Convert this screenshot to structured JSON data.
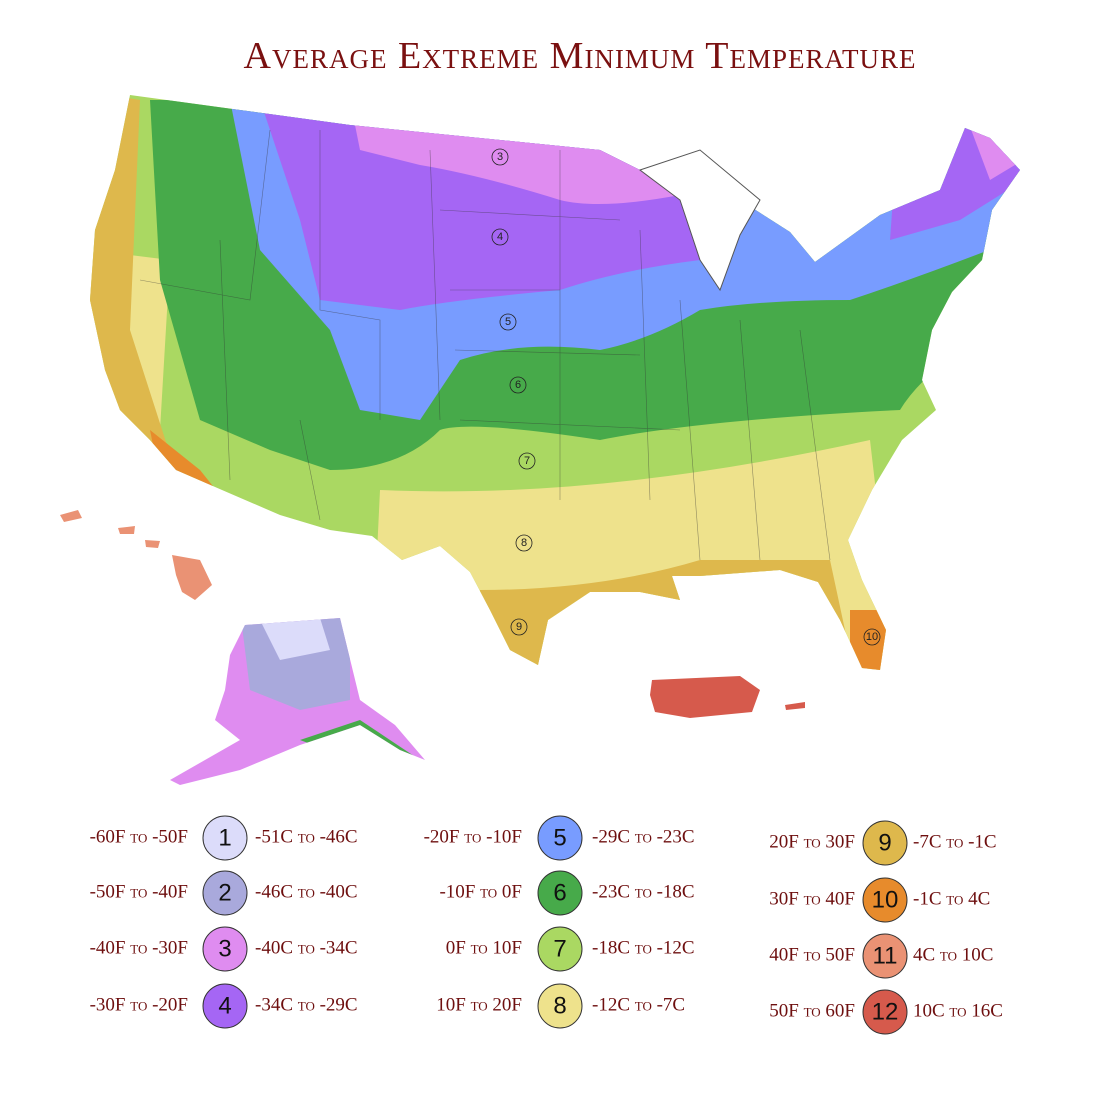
{
  "title": "Average Extreme Minimum Temperature",
  "map_labels": [
    "3",
    "4",
    "5",
    "6",
    "7",
    "8",
    "9",
    "10"
  ],
  "legend": [
    {
      "zone": "1",
      "fahrenheit": "-60F to -50F",
      "celsius": "-51C to -46C",
      "color": "#dcdcfa"
    },
    {
      "zone": "2",
      "fahrenheit": "-50F to -40F",
      "celsius": "-46C to -40C",
      "color": "#a9a9dc"
    },
    {
      "zone": "3",
      "fahrenheit": "-40F to -30F",
      "celsius": "-40C to -34C",
      "color": "#df8cf0"
    },
    {
      "zone": "4",
      "fahrenheit": "-30F to -20F",
      "celsius": "-34C to -29C",
      "color": "#a566f4"
    },
    {
      "zone": "5",
      "fahrenheit": "-20F to -10F",
      "celsius": "-29C to -23C",
      "color": "#789cff"
    },
    {
      "zone": "6",
      "fahrenheit": "-10F to 0F",
      "celsius": "-23C to -18C",
      "color": "#47aa4a"
    },
    {
      "zone": "7",
      "fahrenheit": "0F to 10F",
      "celsius": "-18C to -12C",
      "color": "#aad862"
    },
    {
      "zone": "8",
      "fahrenheit": "10F to 20F",
      "celsius": "-12C to -7C",
      "color": "#eee28c"
    },
    {
      "zone": "9",
      "fahrenheit": "20F to 30F",
      "celsius": "-7C to -1C",
      "color": "#deb84c"
    },
    {
      "zone": "10",
      "fahrenheit": "30F to 40F",
      "celsius": "-1C to 4C",
      "color": "#e78b2c"
    },
    {
      "zone": "11",
      "fahrenheit": "40F to 50F",
      "celsius": "4C to 10C",
      "color": "#ea9274"
    },
    {
      "zone": "12",
      "fahrenheit": "50F to 60F",
      "celsius": "10C to 16C",
      "color": "#d65a4c"
    }
  ]
}
